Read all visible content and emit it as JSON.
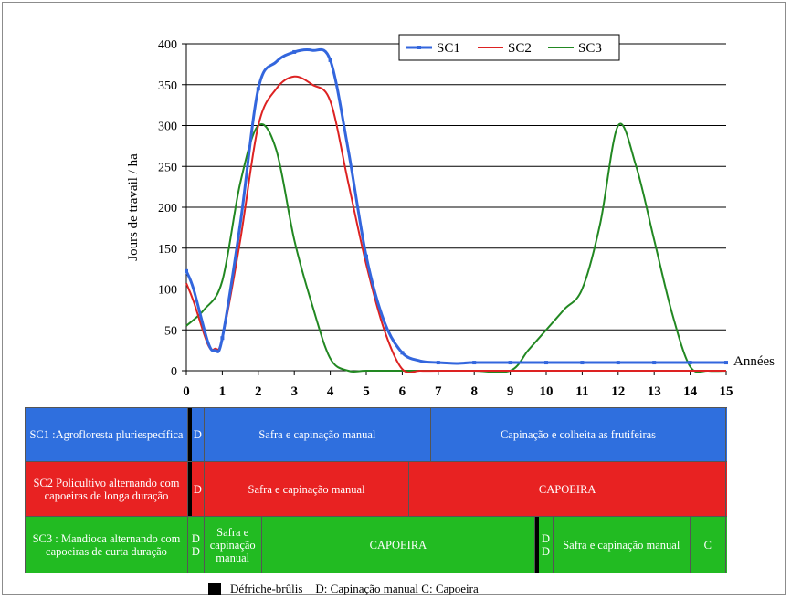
{
  "chart_data": {
    "type": "line",
    "ylabel": "Jours de travail / ha",
    "xlabel": "Années",
    "xlim": [
      0,
      15
    ],
    "ylim": [
      0,
      400
    ],
    "y_ticks": [
      "0",
      "50",
      "100",
      "150",
      "200",
      "250",
      "300",
      "350",
      "400"
    ],
    "x_ticks": [
      "0",
      "1",
      "2",
      "3",
      "4",
      "5",
      "6",
      "7",
      "8",
      "9",
      "10",
      "11",
      "12",
      "13",
      "14",
      "15"
    ],
    "grid": "horizontal",
    "legend_position": "top-right",
    "series": [
      {
        "name": "SC1",
        "color": "#3366dd",
        "marker": true,
        "x": [
          0,
          0.2,
          0.6,
          0.8,
          1.0,
          1.5,
          2.0,
          2.5,
          3.0,
          3.5,
          4.0,
          4.5,
          5.0,
          5.5,
          6.0,
          6.5,
          7.0,
          7.5,
          8,
          9,
          10,
          11,
          12,
          13,
          14,
          15
        ],
        "y": [
          122,
          100,
          35,
          25,
          40,
          180,
          345,
          378,
          390,
          392,
          380,
          270,
          140,
          60,
          22,
          12,
          10,
          9,
          10,
          10,
          10,
          10,
          10,
          10,
          10,
          10
        ]
      },
      {
        "name": "SC2",
        "color": "#dd2222",
        "marker": false,
        "x": [
          0,
          0.2,
          0.6,
          0.8,
          1.0,
          1.5,
          2.0,
          2.5,
          3.0,
          3.5,
          4.0,
          4.5,
          5.0,
          5.5,
          6.0,
          6.5,
          7,
          8,
          9,
          10,
          11,
          12,
          13,
          14,
          15
        ],
        "y": [
          107,
          85,
          32,
          27,
          40,
          160,
          300,
          345,
          360,
          350,
          330,
          230,
          130,
          50,
          2,
          0,
          0,
          0,
          0,
          0,
          0,
          0,
          0,
          0,
          0
        ]
      },
      {
        "name": "SC3",
        "color": "#228822",
        "marker": false,
        "x": [
          0,
          0.5,
          1.0,
          1.5,
          2.0,
          2.5,
          3.0,
          3.5,
          4.0,
          4.5,
          5,
          6,
          7,
          8,
          9,
          9.5,
          10,
          10.5,
          11,
          11.5,
          12,
          12.5,
          13,
          13.5,
          14,
          14.5,
          15
        ],
        "y": [
          55,
          75,
          110,
          230,
          300,
          270,
          160,
          80,
          15,
          0,
          0,
          0,
          0,
          0,
          0,
          25,
          50,
          75,
          100,
          180,
          300,
          250,
          160,
          70,
          5,
          0,
          0
        ]
      }
    ]
  },
  "table": {
    "rows": [
      {
        "color": "#2f6fde",
        "cells": [
          {
            "text": "SC1 :Agrofloresta pluriespecífica",
            "span": [
              -0.5,
              0.05
            ]
          },
          {
            "text": "",
            "span": [
              0.05,
              0.15
            ],
            "black": true
          },
          {
            "text": "D",
            "span": [
              0.15,
              0.5
            ]
          },
          {
            "text": "Safra e capinação manual",
            "span": [
              0.5,
              6.8
            ]
          },
          {
            "text": "Capinação e colheita as frutifeiras",
            "span": [
              6.8,
              15.0
            ]
          }
        ]
      },
      {
        "color": "#e82222",
        "cells": [
          {
            "text": "SC2 Policultivo alternando com capoeiras de longa duração",
            "span": [
              -0.5,
              0.05
            ]
          },
          {
            "text": "",
            "span": [
              0.05,
              0.15
            ],
            "black": true
          },
          {
            "text": "D",
            "span": [
              0.15,
              0.5
            ]
          },
          {
            "text": "Safra e capinação manual",
            "span": [
              0.5,
              6.2
            ]
          },
          {
            "text": "CAPOEIRA",
            "span": [
              6.2,
              15.0
            ]
          }
        ]
      },
      {
        "color": "#22bb22",
        "cells": [
          {
            "text": "SC3 : Mandioca alternando com capoeiras de curta duração",
            "span": [
              -0.5,
              0.05
            ]
          },
          {
            "text": "D\nD",
            "span": [
              0.05,
              0.5
            ]
          },
          {
            "text": "Safra e capinação manual",
            "span": [
              0.5,
              2.1
            ]
          },
          {
            "text": "CAPOEIRA",
            "span": [
              2.1,
              9.7
            ]
          },
          {
            "text": "",
            "span": [
              9.7,
              9.8
            ],
            "black": true
          },
          {
            "text": "D\nD",
            "span": [
              9.8,
              10.2
            ]
          },
          {
            "text": "Safra e capinação manual",
            "span": [
              10.2,
              14.0
            ]
          },
          {
            "text": "C",
            "span": [
              14.0,
              15.0
            ]
          }
        ]
      }
    ]
  },
  "bottom_legend": {
    "icon": "black-square",
    "label_1": "Défriche-brûlis",
    "label_2": "D: Capinação manual C: Capoeira"
  }
}
